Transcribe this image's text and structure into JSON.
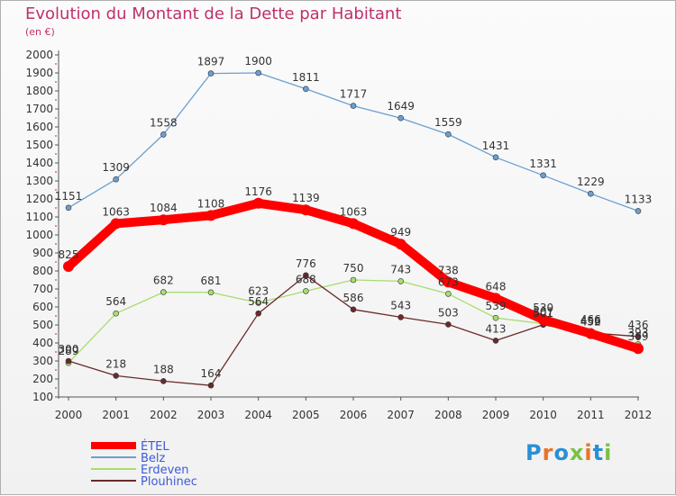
{
  "chart_data": {
    "type": "line",
    "title": "Evolution du Montant de la Dette par Habitant",
    "subtitle": "(en €)",
    "x": [
      "2000",
      "2001",
      "2002",
      "2003",
      "2004",
      "2005",
      "2006",
      "2007",
      "2008",
      "2009",
      "2010",
      "2011",
      "2012"
    ],
    "ylim": [
      100,
      2000
    ],
    "yticks": [
      100,
      200,
      300,
      400,
      500,
      600,
      700,
      800,
      900,
      1000,
      1100,
      1200,
      1300,
      1400,
      1500,
      1600,
      1700,
      1800,
      1900,
      2000
    ],
    "grid": false,
    "legend_position": "bottom-left",
    "series": [
      {
        "name": "ÉTEL",
        "color": "#ff0000",
        "values": [
          825,
          1063,
          1084,
          1108,
          1176,
          1139,
          1063,
          949,
          738,
          648,
          530,
          452,
          369
        ]
      },
      {
        "name": "Belz",
        "color": "#6a9fd0",
        "values": [
          1151,
          1309,
          1558,
          1897,
          1900,
          1811,
          1717,
          1649,
          1559,
          1431,
          1331,
          1229,
          1133
        ]
      },
      {
        "name": "Erdeven",
        "color": "#a8dc6e",
        "values": [
          289,
          564,
          682,
          681,
          623,
          688,
          750,
          743,
          673,
          539,
          507,
          466,
          393
        ]
      },
      {
        "name": "Plouhinec",
        "color": "#6b2a2a",
        "values": [
          300,
          218,
          188,
          164,
          564,
          776,
          586,
          543,
          503,
          413,
          501,
          456,
          436
        ]
      }
    ]
  },
  "logo": {
    "text": "Proxiti"
  }
}
